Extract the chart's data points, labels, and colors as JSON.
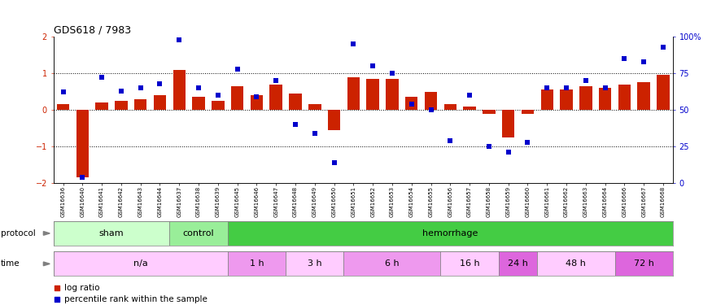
{
  "title": "GDS618 / 7983",
  "samples": [
    "GSM16636",
    "GSM16640",
    "GSM16641",
    "GSM16642",
    "GSM16643",
    "GSM16644",
    "GSM16637",
    "GSM16638",
    "GSM16639",
    "GSM16645",
    "GSM16646",
    "GSM16647",
    "GSM16648",
    "GSM16649",
    "GSM16650",
    "GSM16651",
    "GSM16652",
    "GSM16653",
    "GSM16654",
    "GSM16655",
    "GSM16656",
    "GSM16657",
    "GSM16658",
    "GSM16659",
    "GSM16660",
    "GSM16661",
    "GSM16662",
    "GSM16663",
    "GSM16664",
    "GSM16666",
    "GSM16667",
    "GSM16668"
  ],
  "log_ratio": [
    0.15,
    -1.85,
    0.2,
    0.25,
    0.3,
    0.4,
    1.1,
    0.35,
    0.25,
    0.65,
    0.4,
    0.7,
    0.45,
    0.15,
    -0.55,
    0.9,
    0.85,
    0.85,
    0.35,
    0.5,
    0.15,
    0.1,
    -0.1,
    -0.75,
    -0.12,
    0.55,
    0.55,
    0.65,
    0.6,
    0.7,
    0.75,
    0.95
  ],
  "percentile_pct": [
    62,
    4,
    72,
    63,
    65,
    68,
    98,
    65,
    60,
    78,
    59,
    70,
    40,
    34,
    14,
    95,
    80,
    75,
    54,
    50,
    29,
    60,
    25,
    21,
    28,
    65,
    65,
    70,
    65,
    85,
    83,
    93
  ],
  "protocol_groups": [
    {
      "label": "sham",
      "start": 0,
      "end": 5,
      "color": "#ccffcc"
    },
    {
      "label": "control",
      "start": 6,
      "end": 8,
      "color": "#99ee99"
    },
    {
      "label": "hemorrhage",
      "start": 9,
      "end": 31,
      "color": "#44cc44"
    }
  ],
  "time_groups": [
    {
      "label": "n/a",
      "start": 0,
      "end": 8,
      "color": "#ffccff"
    },
    {
      "label": "1 h",
      "start": 9,
      "end": 11,
      "color": "#ee99ee"
    },
    {
      "label": "3 h",
      "start": 12,
      "end": 14,
      "color": "#ffccff"
    },
    {
      "label": "6 h",
      "start": 15,
      "end": 19,
      "color": "#ee99ee"
    },
    {
      "label": "16 h",
      "start": 20,
      "end": 22,
      "color": "#ffccff"
    },
    {
      "label": "24 h",
      "start": 23,
      "end": 24,
      "color": "#dd66dd"
    },
    {
      "label": "48 h",
      "start": 25,
      "end": 28,
      "color": "#ffccff"
    },
    {
      "label": "72 h",
      "start": 29,
      "end": 31,
      "color": "#dd66dd"
    }
  ],
  "bar_color": "#cc2200",
  "marker_color": "#0000cc",
  "ylim": [
    -2,
    2
  ],
  "y_ticks": [
    -2,
    -1,
    0,
    1,
    2
  ],
  "y2lim": [
    0,
    100
  ],
  "y2_ticks": [
    0,
    25,
    50,
    75,
    100
  ],
  "y2_tick_labels": [
    "0",
    "25",
    "50",
    "75",
    "100%"
  ],
  "hlines": [
    -1.0,
    0.0,
    1.0
  ],
  "bg_color": "#ffffff",
  "bar_width": 0.65
}
